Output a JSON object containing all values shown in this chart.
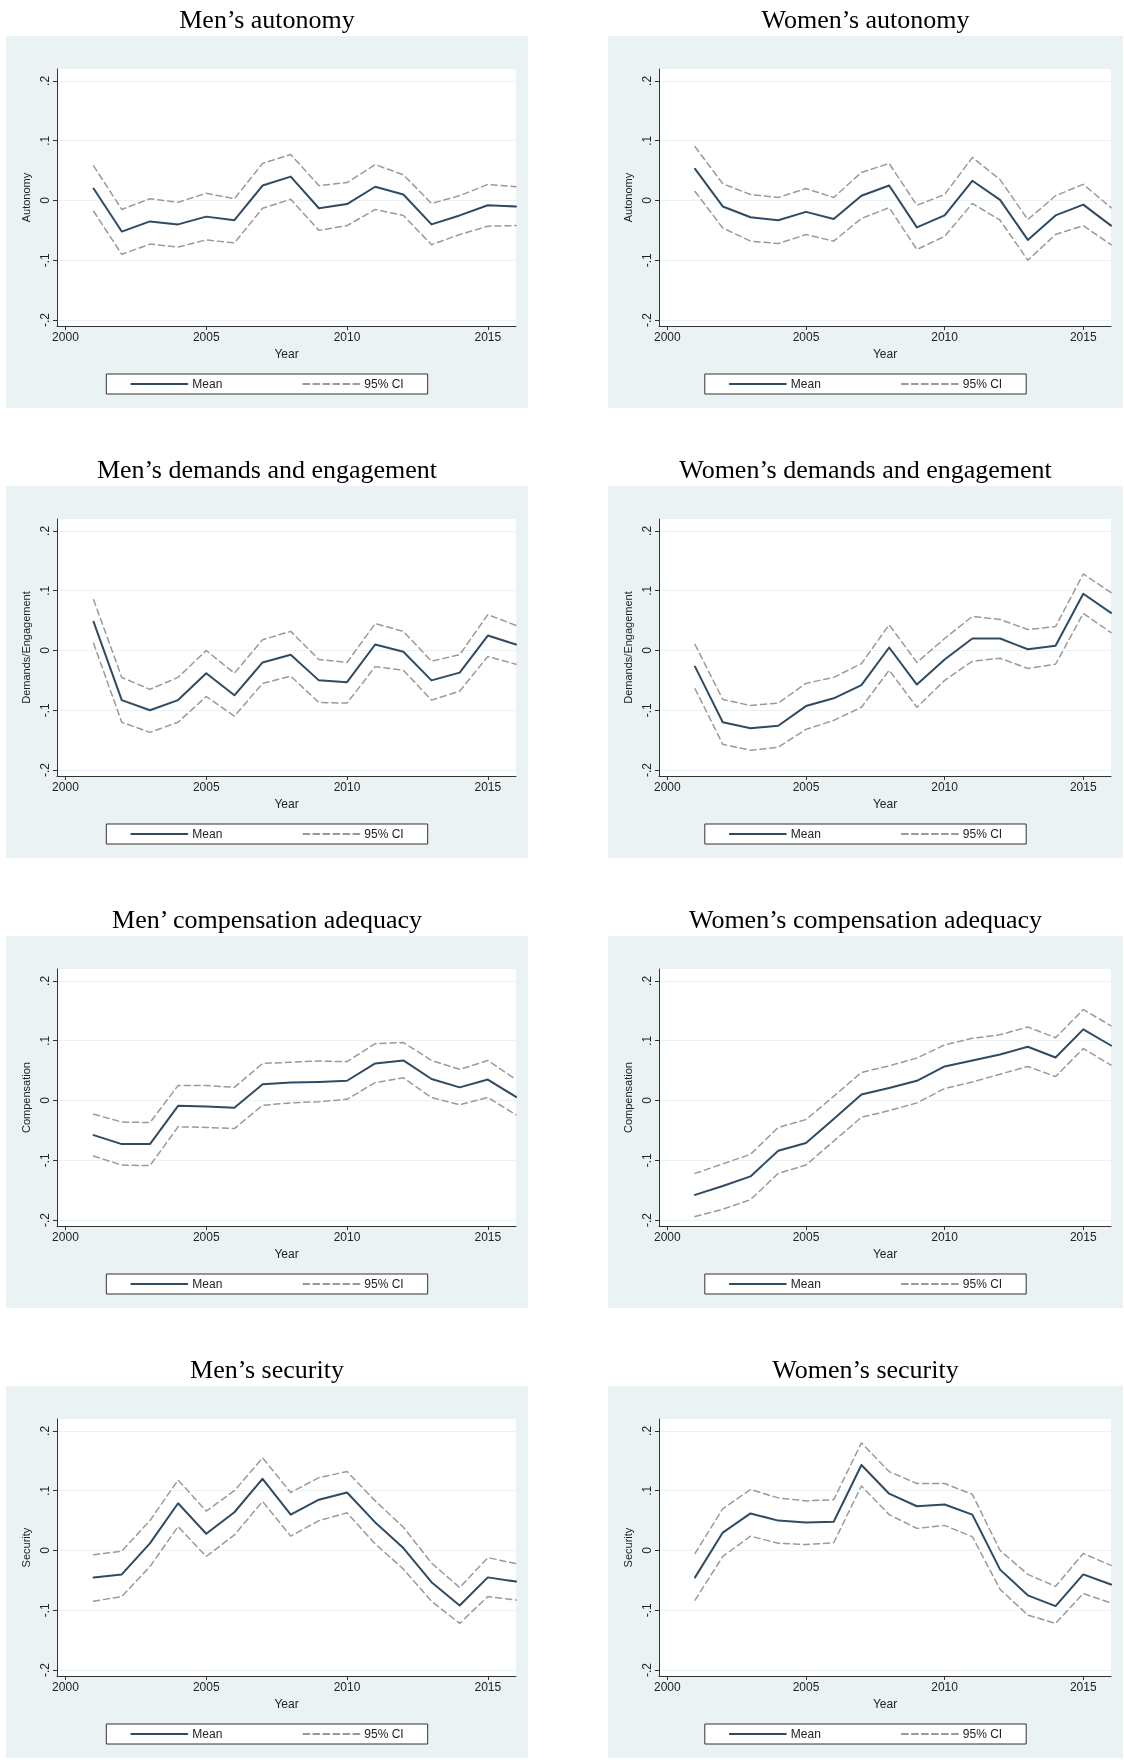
{
  "chart_data": [
    {
      "type": "line",
      "title": "Men’s autonomy",
      "xlabel": "Year",
      "ylabel": "Autonomy",
      "x": [
        2001,
        2002,
        2003,
        2004,
        2005,
        2006,
        2007,
        2008,
        2009,
        2010,
        2011,
        2012,
        2013,
        2014,
        2015,
        2016
      ],
      "xlim": [
        1999.7,
        2016
      ],
      "xticks": [
        2000,
        2005,
        2010,
        2015
      ],
      "ylim": [
        -0.21,
        0.22
      ],
      "yticks": [
        {
          "value": -0.2,
          "label": "-.2"
        },
        {
          "value": -0.1,
          "label": "-.1"
        },
        {
          "value": 0,
          "label": "0"
        },
        {
          "value": 0.1,
          "label": ".1"
        },
        {
          "value": 0.2,
          "label": ".2"
        }
      ],
      "grid": "y",
      "legend": "bottom",
      "marker": "none",
      "series": [
        {
          "name": "Mean",
          "color": "#2f4b63",
          "line_style": "solid",
          "values": [
            0.02,
            -0.052,
            -0.035,
            -0.04,
            -0.027,
            -0.033,
            0.025,
            0.04,
            -0.013,
            -0.006,
            0.023,
            0.01,
            -0.04,
            -0.025,
            -0.008,
            -0.01
          ]
        },
        {
          "name": "95% CI",
          "color": "#9a9a9a",
          "line_style": "dashed",
          "values": [
            0.058,
            -0.015,
            0.003,
            -0.003,
            0.012,
            0.003,
            0.062,
            0.077,
            0.025,
            0.03,
            0.06,
            0.043,
            -0.005,
            0.008,
            0.027,
            0.023
          ]
        },
        {
          "color": "#9a9a9a",
          "line_style": "dashed",
          "values": [
            -0.018,
            -0.09,
            -0.073,
            -0.078,
            -0.066,
            -0.071,
            -0.013,
            0.002,
            -0.05,
            -0.042,
            -0.015,
            -0.025,
            -0.074,
            -0.057,
            -0.043,
            -0.042
          ]
        }
      ]
    },
    {
      "type": "line",
      "title": "Women’s autonomy",
      "xlabel": "Year",
      "ylabel": "Autonomy",
      "x": [
        2001,
        2002,
        2003,
        2004,
        2005,
        2006,
        2007,
        2008,
        2009,
        2010,
        2011,
        2012,
        2013,
        2014,
        2015,
        2016
      ],
      "xlim": [
        1999.7,
        2016
      ],
      "xticks": [
        2000,
        2005,
        2010,
        2015
      ],
      "ylim": [
        -0.21,
        0.22
      ],
      "yticks": [
        {
          "value": -0.2,
          "label": "-.2"
        },
        {
          "value": -0.1,
          "label": "-.1"
        },
        {
          "value": 0,
          "label": "0"
        },
        {
          "value": 0.1,
          "label": ".1"
        },
        {
          "value": 0.2,
          "label": ".2"
        }
      ],
      "grid": "y",
      "legend": "bottom",
      "marker": "none",
      "series": [
        {
          "name": "Mean",
          "color": "#2f4b63",
          "line_style": "solid",
          "values": [
            0.053,
            -0.01,
            -0.028,
            -0.033,
            -0.019,
            -0.031,
            0.008,
            0.025,
            -0.045,
            -0.025,
            0.033,
            0.001,
            -0.066,
            -0.025,
            -0.007,
            -0.042
          ]
        },
        {
          "name": "95% CI",
          "color": "#9a9a9a",
          "line_style": "dashed",
          "values": [
            0.09,
            0.028,
            0.01,
            0.005,
            0.02,
            0.005,
            0.047,
            0.062,
            -0.008,
            0.01,
            0.072,
            0.035,
            -0.032,
            0.008,
            0.027,
            -0.012
          ]
        },
        {
          "color": "#9a9a9a",
          "line_style": "dashed",
          "values": [
            0.015,
            -0.046,
            -0.068,
            -0.072,
            -0.057,
            -0.068,
            -0.03,
            -0.012,
            -0.082,
            -0.06,
            -0.005,
            -0.033,
            -0.1,
            -0.057,
            -0.042,
            -0.074
          ]
        }
      ]
    },
    {
      "type": "line",
      "title": "Men’s demands and engagement",
      "xlabel": "Year",
      "ylabel": "Demands/Engagement",
      "x": [
        2001,
        2002,
        2003,
        2004,
        2005,
        2006,
        2007,
        2008,
        2009,
        2010,
        2011,
        2012,
        2013,
        2014,
        2015,
        2016
      ],
      "xlim": [
        1999.7,
        2016
      ],
      "xticks": [
        2000,
        2005,
        2010,
        2015
      ],
      "ylim": [
        -0.21,
        0.22
      ],
      "yticks": [
        {
          "value": -0.2,
          "label": "-.2"
        },
        {
          "value": -0.1,
          "label": "-.1"
        },
        {
          "value": 0,
          "label": "0"
        },
        {
          "value": 0.1,
          "label": ".1"
        },
        {
          "value": 0.2,
          "label": ".2"
        }
      ],
      "grid": "y",
      "legend": "bottom",
      "marker": "none",
      "series": [
        {
          "name": "Mean",
          "color": "#2f4b63",
          "line_style": "solid",
          "values": [
            0.048,
            -0.083,
            -0.1,
            -0.083,
            -0.038,
            -0.075,
            -0.02,
            -0.007,
            -0.05,
            -0.053,
            0.01,
            -0.002,
            -0.05,
            -0.037,
            0.025,
            0.01
          ]
        },
        {
          "name": "95% CI",
          "color": "#9a9a9a",
          "line_style": "dashed",
          "values": [
            0.085,
            -0.045,
            -0.065,
            -0.045,
            0,
            -0.038,
            0.018,
            0.032,
            -0.015,
            -0.02,
            0.045,
            0.032,
            -0.018,
            -0.007,
            0.06,
            0.042
          ]
        },
        {
          "color": "#9a9a9a",
          "line_style": "dashed",
          "values": [
            0.012,
            -0.12,
            -0.137,
            -0.12,
            -0.077,
            -0.11,
            -0.055,
            -0.043,
            -0.087,
            -0.088,
            -0.027,
            -0.033,
            -0.083,
            -0.068,
            -0.01,
            -0.023
          ]
        }
      ]
    },
    {
      "type": "line",
      "title": "Women’s demands and engagement",
      "xlabel": "Year",
      "ylabel": "Demands/Engagement",
      "x": [
        2001,
        2002,
        2003,
        2004,
        2005,
        2006,
        2007,
        2008,
        2009,
        2010,
        2011,
        2012,
        2013,
        2014,
        2015,
        2016
      ],
      "xlim": [
        1999.7,
        2016
      ],
      "xticks": [
        2000,
        2005,
        2010,
        2015
      ],
      "ylim": [
        -0.21,
        0.22
      ],
      "yticks": [
        {
          "value": -0.2,
          "label": "-.2"
        },
        {
          "value": -0.1,
          "label": "-.1"
        },
        {
          "value": 0,
          "label": "0"
        },
        {
          "value": 0.1,
          "label": ".1"
        },
        {
          "value": 0.2,
          "label": ".2"
        }
      ],
      "grid": "y",
      "legend": "bottom",
      "marker": "none",
      "series": [
        {
          "name": "Mean",
          "color": "#2f4b63",
          "line_style": "solid",
          "values": [
            -0.027,
            -0.12,
            -0.13,
            -0.126,
            -0.093,
            -0.08,
            -0.058,
            0.005,
            -0.057,
            -0.015,
            0.02,
            0.02,
            0.002,
            0.008,
            0.095,
            0.063
          ]
        },
        {
          "name": "95% CI",
          "color": "#9a9a9a",
          "line_style": "dashed",
          "values": [
            0.01,
            -0.082,
            -0.092,
            -0.088,
            -0.055,
            -0.045,
            -0.022,
            0.043,
            -0.02,
            0.02,
            0.057,
            0.052,
            0.035,
            0.04,
            0.128,
            0.097
          ]
        },
        {
          "color": "#9a9a9a",
          "line_style": "dashed",
          "values": [
            -0.064,
            -0.157,
            -0.167,
            -0.162,
            -0.132,
            -0.117,
            -0.095,
            -0.033,
            -0.095,
            -0.05,
            -0.018,
            -0.013,
            -0.03,
            -0.023,
            0.062,
            0.03
          ]
        }
      ]
    },
    {
      "type": "line",
      "title": "Men’ compensation adequacy",
      "xlabel": "Year",
      "ylabel": "Compensation",
      "x": [
        2001,
        2002,
        2003,
        2004,
        2005,
        2006,
        2007,
        2008,
        2009,
        2010,
        2011,
        2012,
        2013,
        2014,
        2015,
        2016
      ],
      "xlim": [
        1999.7,
        2016
      ],
      "xticks": [
        2000,
        2005,
        2010,
        2015
      ],
      "ylim": [
        -0.21,
        0.22
      ],
      "yticks": [
        {
          "value": -0.2,
          "label": "-.2"
        },
        {
          "value": -0.1,
          "label": "-.1"
        },
        {
          "value": 0,
          "label": "0"
        },
        {
          "value": 0.1,
          "label": ".1"
        },
        {
          "value": 0.2,
          "label": ".2"
        }
      ],
      "grid": "y",
      "legend": "bottom",
      "marker": "none",
      "series": [
        {
          "name": "Mean",
          "color": "#2f4b63",
          "line_style": "solid",
          "values": [
            -0.058,
            -0.073,
            -0.073,
            -0.009,
            -0.01,
            -0.012,
            0.027,
            0.03,
            0.031,
            0.033,
            0.062,
            0.067,
            0.036,
            0.022,
            0.035,
            0.006
          ]
        },
        {
          "name": "95% CI",
          "color": "#9a9a9a",
          "line_style": "dashed",
          "values": [
            -0.023,
            -0.036,
            -0.037,
            0.025,
            0.025,
            0.022,
            0.062,
            0.064,
            0.066,
            0.065,
            0.095,
            0.097,
            0.067,
            0.052,
            0.067,
            0.035
          ]
        },
        {
          "color": "#9a9a9a",
          "line_style": "dashed",
          "values": [
            -0.093,
            -0.108,
            -0.109,
            -0.044,
            -0.045,
            -0.047,
            -0.008,
            -0.004,
            -0.002,
            0.002,
            0.03,
            0.038,
            0.005,
            -0.007,
            0.005,
            -0.024
          ]
        }
      ]
    },
    {
      "type": "line",
      "title": "Women’s compensation adequacy",
      "xlabel": "Year",
      "ylabel": "Compensation",
      "x": [
        2001,
        2002,
        2003,
        2004,
        2005,
        2006,
        2007,
        2008,
        2009,
        2010,
        2011,
        2012,
        2013,
        2014,
        2015,
        2016
      ],
      "xlim": [
        1999.7,
        2016
      ],
      "xticks": [
        2000,
        2005,
        2010,
        2015
      ],
      "ylim": [
        -0.21,
        0.22
      ],
      "yticks": [
        {
          "value": -0.2,
          "label": "-.2"
        },
        {
          "value": -0.1,
          "label": "-.1"
        },
        {
          "value": 0,
          "label": "0"
        },
        {
          "value": 0.1,
          "label": ".1"
        },
        {
          "value": 0.2,
          "label": ".2"
        }
      ],
      "grid": "y",
      "legend": "bottom",
      "marker": "none",
      "series": [
        {
          "name": "Mean",
          "color": "#2f4b63",
          "line_style": "solid",
          "values": [
            -0.158,
            -0.143,
            -0.127,
            -0.084,
            -0.071,
            -0.031,
            0.01,
            0.021,
            0.033,
            0.057,
            0.067,
            0.077,
            0.09,
            0.072,
            0.119,
            0.092
          ]
        },
        {
          "name": "95% CI",
          "color": "#9a9a9a",
          "line_style": "dashed",
          "values": [
            -0.122,
            -0.106,
            -0.09,
            -0.045,
            -0.032,
            0.007,
            0.047,
            0.058,
            0.071,
            0.093,
            0.104,
            0.11,
            0.123,
            0.105,
            0.152,
            0.125
          ]
        },
        {
          "color": "#9a9a9a",
          "line_style": "dashed",
          "values": [
            -0.194,
            -0.182,
            -0.166,
            -0.122,
            -0.108,
            -0.068,
            -0.028,
            -0.017,
            -0.004,
            0.02,
            0.031,
            0.044,
            0.057,
            0.04,
            0.087,
            0.059
          ]
        }
      ]
    },
    {
      "type": "line",
      "title": "Men’s security",
      "xlabel": "Year",
      "ylabel": "Security",
      "x": [
        2001,
        2002,
        2003,
        2004,
        2005,
        2006,
        2007,
        2008,
        2009,
        2010,
        2011,
        2012,
        2013,
        2014,
        2015,
        2016
      ],
      "xlim": [
        1999.7,
        2016
      ],
      "xticks": [
        2000,
        2005,
        2010,
        2015
      ],
      "ylim": [
        -0.21,
        0.22
      ],
      "yticks": [
        {
          "value": -0.2,
          "label": "-.2"
        },
        {
          "value": -0.1,
          "label": "-.1"
        },
        {
          "value": 0,
          "label": "0"
        },
        {
          "value": 0.1,
          "label": ".1"
        },
        {
          "value": 0.2,
          "label": ".2"
        }
      ],
      "grid": "y",
      "legend": "bottom",
      "marker": "none",
      "series": [
        {
          "name": "Mean",
          "color": "#2f4b63",
          "line_style": "solid",
          "values": [
            -0.045,
            -0.04,
            0.012,
            0.079,
            0.028,
            0.064,
            0.12,
            0.06,
            0.085,
            0.097,
            0.047,
            0.004,
            -0.053,
            -0.092,
            -0.045,
            -0.052
          ]
        },
        {
          "name": "95% CI",
          "color": "#9a9a9a",
          "line_style": "dashed",
          "values": [
            -0.007,
            -0.001,
            0.05,
            0.118,
            0.066,
            0.1,
            0.155,
            0.097,
            0.122,
            0.132,
            0.083,
            0.039,
            -0.021,
            -0.062,
            -0.012,
            -0.022
          ]
        },
        {
          "color": "#9a9a9a",
          "line_style": "dashed",
          "values": [
            -0.085,
            -0.077,
            -0.027,
            0.04,
            -0.01,
            0.026,
            0.082,
            0.024,
            0.05,
            0.063,
            0.011,
            -0.031,
            -0.085,
            -0.122,
            -0.077,
            -0.083
          ]
        }
      ]
    },
    {
      "type": "line",
      "title": "Women’s security",
      "xlabel": "Year",
      "ylabel": "Security",
      "x": [
        2001,
        2002,
        2003,
        2004,
        2005,
        2006,
        2007,
        2008,
        2009,
        2010,
        2011,
        2012,
        2013,
        2014,
        2015,
        2016
      ],
      "xlim": [
        1999.7,
        2016
      ],
      "xticks": [
        2000,
        2005,
        2010,
        2015
      ],
      "ylim": [
        -0.21,
        0.22
      ],
      "yticks": [
        {
          "value": -0.2,
          "label": "-.2"
        },
        {
          "value": -0.1,
          "label": "-.1"
        },
        {
          "value": 0,
          "label": "0"
        },
        {
          "value": 0.1,
          "label": ".1"
        },
        {
          "value": 0.2,
          "label": ".2"
        }
      ],
      "grid": "y",
      "legend": "bottom",
      "marker": "none",
      "series": [
        {
          "name": "Mean",
          "color": "#2f4b63",
          "line_style": "solid",
          "values": [
            -0.045,
            0.03,
            0.062,
            0.05,
            0.047,
            0.048,
            0.143,
            0.095,
            0.074,
            0.077,
            0.06,
            -0.032,
            -0.075,
            -0.093,
            -0.04,
            -0.057
          ]
        },
        {
          "name": "95% CI",
          "color": "#9a9a9a",
          "line_style": "dashed",
          "values": [
            -0.005,
            0.07,
            0.102,
            0.088,
            0.083,
            0.085,
            0.18,
            0.132,
            0.112,
            0.112,
            0.094,
            0,
            -0.04,
            -0.06,
            -0.005,
            -0.025
          ]
        },
        {
          "color": "#9a9a9a",
          "line_style": "dashed",
          "values": [
            -0.083,
            -0.01,
            0.024,
            0.012,
            0.01,
            0.013,
            0.108,
            0.06,
            0.037,
            0.042,
            0.023,
            -0.065,
            -0.108,
            -0.122,
            -0.072,
            -0.088
          ]
        }
      ]
    }
  ]
}
